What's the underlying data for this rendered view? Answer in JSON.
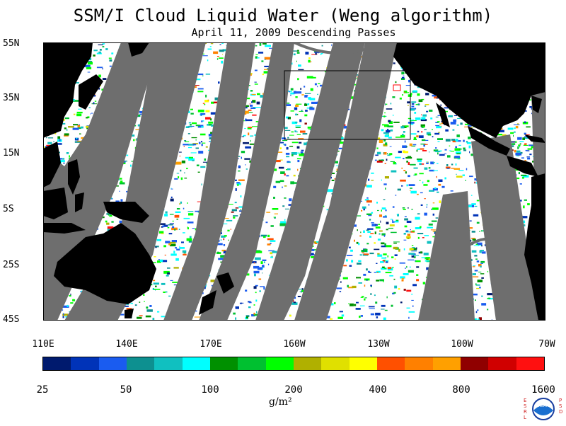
{
  "title": "SSM/I Cloud Liquid Water (Weng algorithm)",
  "subtitle": "April 11, 2009  Descending Passes",
  "lat_labels": [
    "55N",
    "35N",
    "15N",
    "5S",
    "25S",
    "45S"
  ],
  "lon_labels": [
    "110E",
    "140E",
    "170E",
    "160W",
    "130W",
    "100W",
    "70W"
  ],
  "colorbar": {
    "colors": [
      "#001a6e",
      "#0033b8",
      "#1a5cf0",
      "#0d9090",
      "#10c0c0",
      "#00ffff",
      "#009000",
      "#00c030",
      "#00ff00",
      "#b0b000",
      "#e0e000",
      "#ffff00",
      "#ff5000",
      "#ff8000",
      "#ffa000",
      "#900000",
      "#d00000",
      "#ff1010"
    ],
    "tick_labels": [
      "25",
      "50",
      "100",
      "200",
      "400",
      "800",
      "1600"
    ],
    "units": "g/m²"
  },
  "colors": {
    "land": "#000000",
    "no_data": "#6e6e6e",
    "clear": "#ffffff"
  },
  "logo": {
    "left_letters": "ESRL",
    "right_letters": "PSD",
    "center_text": "NOAA"
  }
}
